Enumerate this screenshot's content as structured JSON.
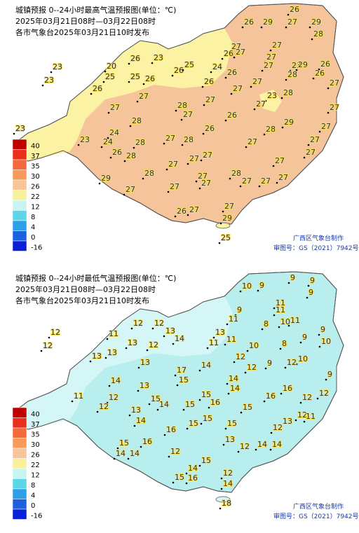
{
  "panels": [
    {
      "title_lines": [
        "城镇预报 0--24小时最高气温预报图(单位：℃)",
        "2025年03月21日08时—03月22日08时",
        "各市气象台2025年03月21日10时发布"
      ],
      "legend": {
        "labels": [
          "40",
          "37",
          "35",
          "30",
          "26",
          "22",
          "12",
          "8",
          "4",
          "0",
          "-16"
        ],
        "colors": [
          "#c00000",
          "#e8301c",
          "#f46a3c",
          "#f89a5c",
          "#f8c49a",
          "#f8f09a",
          "#c8f4f4",
          "#5ad6e8",
          "#2ea0e8",
          "#1c62e0",
          "#0a20d8"
        ]
      },
      "stations": [
        26,
        26,
        29,
        27,
        29,
        28,
        27,
        27,
        26,
        27,
        27,
        26,
        27,
        23,
        29,
        20,
        23,
        23,
        26,
        26,
        25,
        24,
        26,
        26,
        25,
        25,
        26,
        23,
        26,
        27,
        28,
        27,
        26,
        27,
        28,
        27,
        23,
        27,
        27,
        27,
        28,
        27,
        26,
        28,
        27,
        29,
        26,
        23,
        24,
        27,
        27,
        28,
        27,
        28,
        27,
        24,
        28,
        23,
        26,
        27,
        27,
        28,
        27,
        27,
        27,
        28,
        28,
        27,
        27,
        27,
        29,
        27,
        27,
        27,
        27,
        26,
        27,
        27,
        29,
        25
      ],
      "credit": "广西区气象台制作",
      "approval": "审图号：GS（2021）7942号"
    },
    {
      "title_lines": [
        "城镇预报 0--24小时最低气温预报图(单位：℃)",
        "2025年03月21日08时—03月22日08时",
        "各市气象台2025年03月21日10时发布"
      ],
      "legend": {
        "labels": [
          "40",
          "37",
          "35",
          "30",
          "26",
          "22",
          "12",
          "8",
          "4",
          "0",
          "-16"
        ],
        "colors": [
          "#c00000",
          "#e8301c",
          "#f46a3c",
          "#f89a5c",
          "#f8c49a",
          "#f8f09a",
          "#c8f4f4",
          "#5ad6e8",
          "#2ea0e8",
          "#1c62e0",
          "#0a20d8"
        ]
      },
      "stations": [
        10,
        9,
        9,
        9,
        9,
        11,
        11,
        9,
        11,
        11,
        8,
        10,
        12,
        12,
        12,
        11,
        13,
        14,
        13,
        9,
        11,
        12,
        13,
        13,
        12,
        13,
        11,
        10,
        8,
        9,
        10,
        13,
        12,
        9,
        10,
        14,
        12,
        14,
        17,
        15,
        14,
        12,
        9,
        11,
        12,
        14,
        16,
        13,
        15,
        15,
        16,
        16,
        12,
        12,
        14,
        12,
        15,
        13,
        15,
        12,
        11,
        14,
        15,
        15,
        15,
        13,
        12,
        16,
        13,
        15,
        16,
        12,
        14,
        14,
        14,
        14,
        12,
        15,
        14,
        16,
        15,
        12,
        14,
        18
      ],
      "credit": "广西区气象台制作",
      "approval": "审图号：GS（2021）7942号"
    }
  ]
}
